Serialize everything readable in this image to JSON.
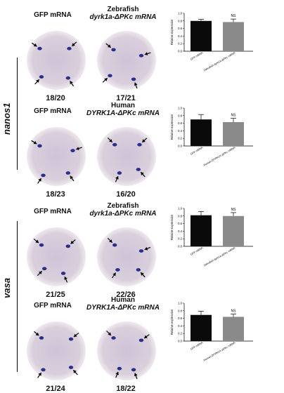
{
  "panels": [
    {
      "row": 0,
      "col": 0,
      "label_line1": "GFP mRNA",
      "label_line2": "",
      "count": "18/20"
    },
    {
      "row": 0,
      "col": 1,
      "label_line1": "Zebrafish",
      "label_line2": "dyrk1a-ΔPKc mRNA",
      "count": "17/21"
    },
    {
      "row": 1,
      "col": 0,
      "label_line1": "GFP mRNA",
      "label_line2": "",
      "count": "18/23"
    },
    {
      "row": 1,
      "col": 1,
      "label_line1": "Human",
      "label_line2": "DYRK1A-ΔPKc mRNA",
      "count": "16/20"
    },
    {
      "row": 2,
      "col": 0,
      "label_line1": "GFP mRNA",
      "label_line2": "",
      "count": "21/25"
    },
    {
      "row": 2,
      "col": 1,
      "label_line1": "Zebrafish",
      "label_line2": "dyrk1a-ΔPKc mRNA",
      "count": "22/26"
    },
    {
      "row": 3,
      "col": 0,
      "label_line1": "GFP mRNA",
      "label_line2": "",
      "count": "21/24"
    },
    {
      "row": 3,
      "col": 1,
      "label_line1": "Human",
      "label_line2": "DYRK1A-ΔPKc mRNA",
      "count": "18/22"
    }
  ],
  "side_labels": {
    "nanos1": "nanos1",
    "vasa": "vasa"
  },
  "colors": {
    "bar_control": "#0a0a0a",
    "bar_treatment": "#8a8a8a",
    "embryo_bg": "#d9cfdc",
    "stain": "#2a2f8c"
  },
  "chart_data": [
    {
      "type": "bar",
      "categories": [
        "GFP mRNA",
        "Zebrafish dyrk1a-ΔPKc mRNA"
      ],
      "values": [
        0.8,
        0.77
      ],
      "errors": [
        0.04,
        0.08
      ],
      "ylabel": "Relative expression",
      "ylim": [
        0,
        1.0
      ],
      "yticks": [
        "0.0",
        "0.2",
        "0.4",
        "0.6",
        "0.8",
        "1.0"
      ],
      "annotation": "NS"
    },
    {
      "type": "bar",
      "categories": [
        "GFP mRNA",
        "Human DYRK1A-ΔPKc mRNA"
      ],
      "values": [
        0.7,
        0.63
      ],
      "errors": [
        0.13,
        0.1
      ],
      "ylabel": "Relative expression",
      "ylim": [
        0,
        1.0
      ],
      "yticks": [
        "0.0",
        "0.2",
        "0.4",
        "0.6",
        "0.8",
        "1.0"
      ],
      "annotation": "NS"
    },
    {
      "type": "bar",
      "categories": [
        "GFP mRNA",
        "Zebrafish dyrk1a-ΔPKc mRNA"
      ],
      "values": [
        0.82,
        0.8
      ],
      "errors": [
        0.1,
        0.09
      ],
      "ylabel": "Relative expression",
      "ylim": [
        0,
        1.0
      ],
      "yticks": [
        "0.0",
        "0.2",
        "0.4",
        "0.6",
        "0.8",
        "1.0"
      ],
      "annotation": "NS"
    },
    {
      "type": "bar",
      "categories": [
        "GFP mRNA",
        "Human DYRK1A-ΔPKc mRNA"
      ],
      "values": [
        0.69,
        0.64
      ],
      "errors": [
        0.1,
        0.07
      ],
      "ylabel": "Relative expression",
      "ylim": [
        0,
        1.0
      ],
      "yticks": [
        "0.0",
        "0.2",
        "0.4",
        "0.6",
        "0.8",
        "1.0"
      ],
      "annotation": "NS"
    }
  ]
}
